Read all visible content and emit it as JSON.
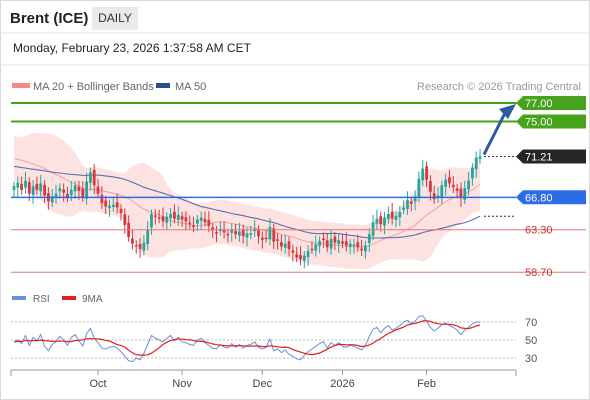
{
  "header": {
    "instrument": "Brent (ICE)",
    "period": "DAILY",
    "datetime": "Monday, February 23, 2026 1:37:58 AM CET"
  },
  "legend": {
    "bb": "MA 20 + Bollinger Bands",
    "ma50": "MA 50",
    "credit": "Research © 2026 Trading Central"
  },
  "rsi_legend": {
    "rsi": "RSI",
    "ma9": "9MA"
  },
  "colors": {
    "up": "#26a69a",
    "down": "#d9363e",
    "bb_fill": "#fde2e2",
    "bb_line": "#f2a0a0",
    "ma50": "#5b6fb0",
    "green_level": "#46a31b",
    "red_level": "#e07a7a",
    "support_blue": "#2e6be6",
    "arrow": "#2a5aa0",
    "last_price_bg": "#262626",
    "rsi": "#6b8fd8",
    "rsi_ma": "#e32020"
  },
  "chart_data": {
    "type": "candlestick",
    "price_axis_labels": {
      "resistance_2": "77.00",
      "resistance_1": "75.00",
      "last": "71.21",
      "pivot": "66.80",
      "support_1": "63.30",
      "support_2": "58.70"
    },
    "levels": {
      "resistance_2": 77.0,
      "resistance_1": 75.0,
      "last": 71.21,
      "pivot": 66.8,
      "support_1": 63.3,
      "support_2": 58.7
    },
    "x_labels": [
      "Oct",
      "Nov",
      "Dec",
      "2026",
      "Feb"
    ],
    "x_label_index": [
      22,
      44,
      65,
      86,
      108
    ],
    "closes": [
      68.0,
      68.4,
      67.6,
      68.6,
      67.2,
      68.0,
      67.6,
      68.3,
      67.0,
      66.4,
      66.9,
      67.2,
      67.8,
      67.3,
      66.8,
      67.6,
      68.1,
      67.5,
      66.8,
      68.5,
      69.5,
      68.1,
      67.2,
      66.2,
      65.8,
      65.9,
      66.0,
      65.7,
      65.1,
      63.8,
      62.5,
      61.8,
      61.5,
      61.2,
      61.9,
      63.3,
      65.0,
      64.8,
      64.5,
      64.2,
      64.7,
      65.0,
      64.5,
      64.9,
      64.4,
      64.2,
      63.9,
      63.7,
      64.4,
      64.6,
      64.1,
      63.7,
      63.2,
      62.9,
      63.4,
      63.0,
      62.7,
      63.3,
      62.8,
      63.1,
      62.6,
      62.9,
      62.9,
      63.4,
      62.6,
      62.2,
      62.4,
      63.6,
      62.0,
      62.1,
      61.5,
      61.8,
      61.2,
      60.8,
      60.3,
      60.1,
      60.5,
      61.0,
      61.2,
      61.7,
      62.1,
      62.3,
      61.4,
      62.3,
      61.9,
      62.2,
      61.8,
      61.6,
      61.8,
      61.7,
      61.4,
      61.1,
      61.6,
      62.8,
      64.1,
      64.5,
      63.9,
      64.6,
      65.0,
      64.5,
      64.8,
      65.2,
      65.7,
      66.5,
      66.1,
      66.9,
      68.8,
      69.9,
      68.7,
      67.4,
      66.6,
      67.0,
      68.1,
      68.7,
      68.3,
      67.9,
      67.5,
      66.7,
      67.8,
      68.6,
      70.0,
      71.1,
      71.21
    ],
    "rsi": {
      "ticks": [
        "70",
        "50",
        "30"
      ],
      "tick_values": [
        70,
        50,
        30
      ],
      "values": [
        48,
        50,
        46,
        55,
        44,
        53,
        49,
        56,
        43,
        38,
        45,
        48,
        54,
        50,
        44,
        53,
        56,
        49,
        43,
        57,
        63,
        52,
        47,
        41,
        40,
        42,
        43,
        41,
        37,
        32,
        27,
        26,
        30,
        28,
        35,
        45,
        55,
        52,
        50,
        48,
        52,
        55,
        49,
        53,
        48,
        47,
        45,
        44,
        50,
        52,
        47,
        44,
        41,
        40,
        45,
        42,
        41,
        46,
        42,
        45,
        41,
        44,
        45,
        48,
        42,
        40,
        42,
        51,
        38,
        40,
        36,
        39,
        34,
        32,
        29,
        28,
        33,
        37,
        40,
        43,
        46,
        48,
        41,
        47,
        44,
        47,
        43,
        42,
        44,
        43,
        41,
        39,
        44,
        54,
        62,
        64,
        58,
        63,
        66,
        61,
        63,
        66,
        70,
        72,
        68,
        71,
        76,
        77,
        71,
        64,
        60,
        63,
        67,
        69,
        66,
        64,
        61,
        56,
        61,
        64,
        68,
        70,
        70
      ],
      "ma9": [
        48,
        48.5,
        48.3,
        49.5,
        49,
        49.3,
        49.3,
        50,
        49.3,
        48.9,
        48.4,
        48.6,
        48.7,
        48.7,
        48.2,
        48.1,
        49.4,
        49.6,
        50.2,
        51.3,
        51.6,
        51.4,
        51.2,
        50.6,
        49.7,
        48.9,
        46.9,
        44.9,
        44,
        42.1,
        38.7,
        35.9,
        33.8,
        33.2,
        33.2,
        33.6,
        35.5,
        38.2,
        41.4,
        45.1,
        47.4,
        49.4,
        50.5,
        51.3,
        50.9,
        50.5,
        50.1,
        49.4,
        48.6,
        48.4,
        47.9,
        46.9,
        45.7,
        44.8,
        44.2,
        43.8,
        43.4,
        43.4,
        43.4,
        43.9,
        43.6,
        43.2,
        43.1,
        43.3,
        43.3,
        42.8,
        42.7,
        43.7,
        43.1,
        42.4,
        41.8,
        42.1,
        41.4,
        39.5,
        37.9,
        36.5,
        35.3,
        34.2,
        33.8,
        34.4,
        35.6,
        37.6,
        39.7,
        42.1,
        43.8,
        45.1,
        45,
        44.7,
        44.8,
        44.5,
        43.9,
        42.8,
        43.1,
        44.4,
        46.5,
        49.3,
        51.6,
        54.5,
        57.3,
        59.2,
        61.2,
        62.8,
        64.2,
        66.7,
        67.6,
        68.5,
        69.7,
        71.1,
        71.4,
        70.6,
        69.1,
        68.1,
        67.6,
        67.5,
        67.5,
        66.8,
        65.7,
        63.4,
        62.9,
        62.8,
        63.8,
        65.6,
        66.7
      ]
    }
  }
}
